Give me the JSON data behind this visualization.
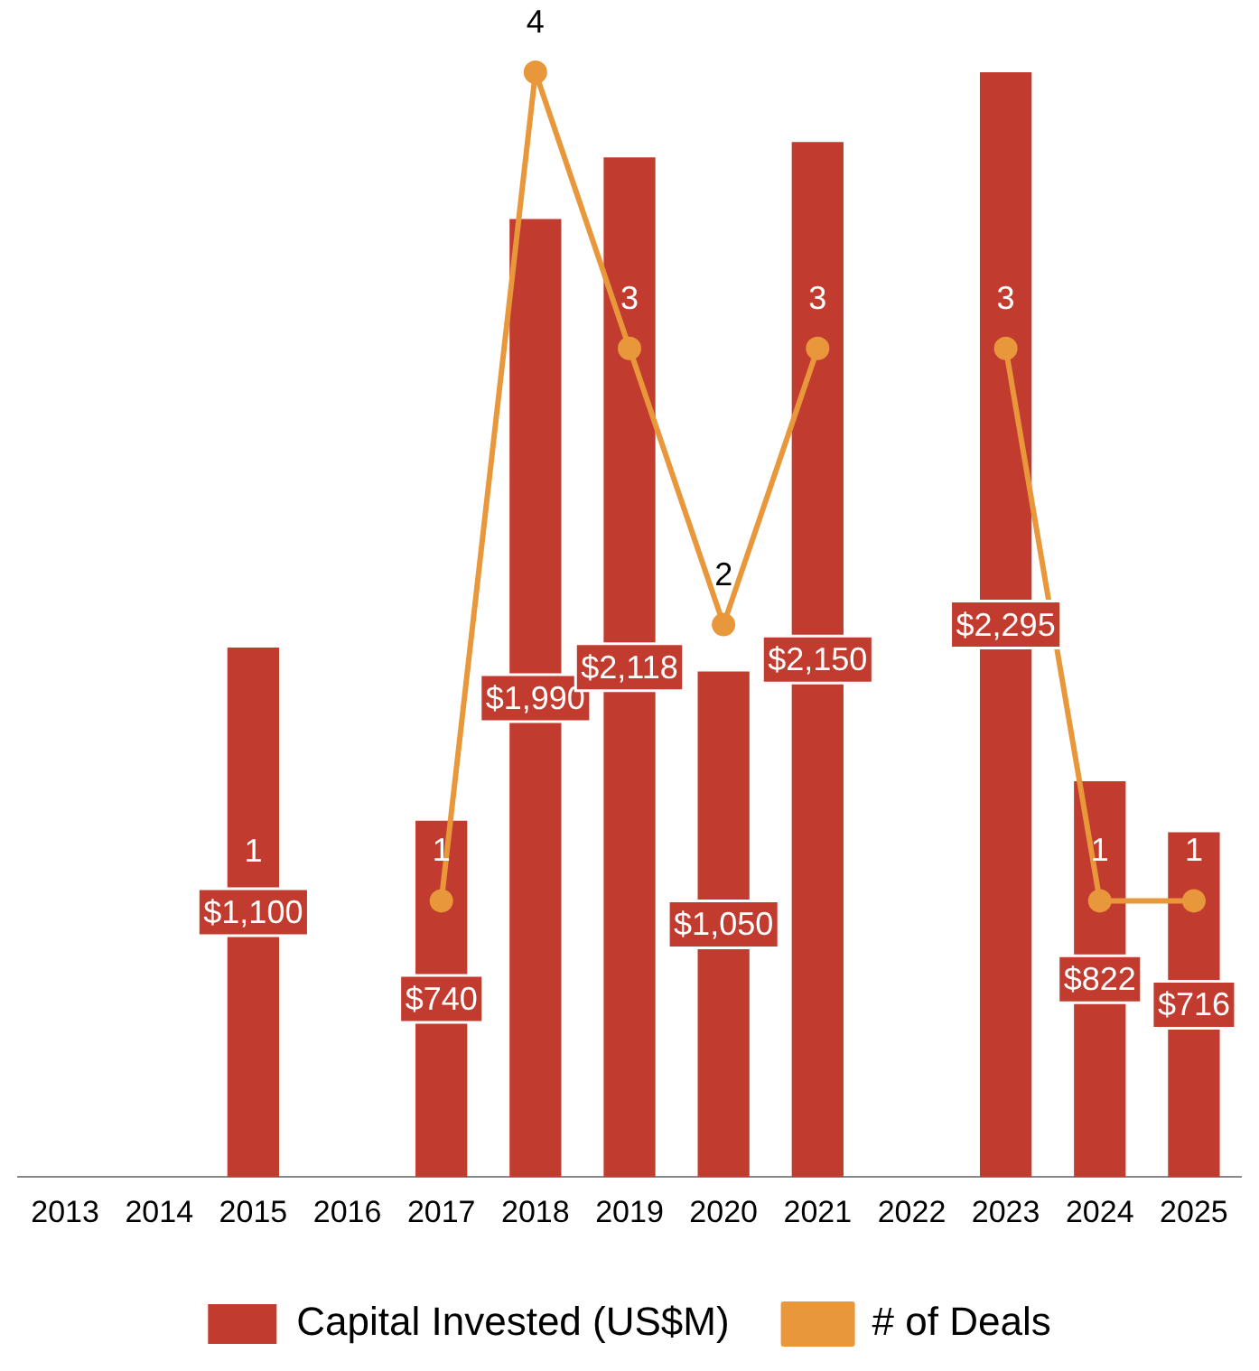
{
  "chart_data": {
    "type": "bar",
    "categories": [
      "2013",
      "2014",
      "2015",
      "2016",
      "2017",
      "2018",
      "2019",
      "2020",
      "2021",
      "2022",
      "2023",
      "2024",
      "2025"
    ],
    "series": [
      {
        "name": "Capital Invested (US$M)",
        "color": "#c23b2f",
        "values": [
          null,
          null,
          1100,
          null,
          740,
          1990,
          2118,
          1050,
          2150,
          null,
          2295,
          822,
          716
        ],
        "value_labels": [
          null,
          null,
          "$1,100",
          null,
          "$740",
          "$1,990",
          "$2,118",
          "$1,050",
          "$2,150",
          null,
          "$2,295",
          "$822",
          "$716"
        ]
      },
      {
        "name": "# of Deals",
        "type": "line",
        "axis": "y2",
        "color": "#e8973b",
        "values": [
          null,
          null,
          null,
          null,
          1,
          4,
          3,
          2,
          3,
          null,
          3,
          1,
          1
        ],
        "value_labels": [
          null,
          null,
          null,
          null,
          "1",
          "4",
          "3",
          "2",
          "3",
          null,
          "3",
          "1",
          "1"
        ]
      }
    ],
    "ylim": [
      0,
      2295
    ],
    "y2lim": [
      0,
      4
    ],
    "tick_labels": "x",
    "grid": false,
    "legend": "bottom",
    "marker": "circle",
    "annotations": [
      "1"
    ]
  }
}
